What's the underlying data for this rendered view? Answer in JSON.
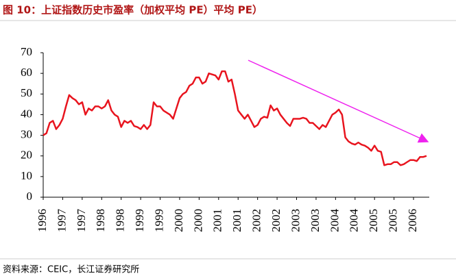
{
  "chart_data": {
    "type": "line",
    "title": "图 10：上证指数历史市盈率（加权平均 PE）平均 PE）",
    "source": "资料来源：CEIC，长江证券研究所",
    "categories": [
      "1996",
      null,
      null,
      null,
      null,
      null,
      "1997",
      null,
      null,
      null,
      null,
      null,
      "1997",
      null,
      null,
      null,
      null,
      null,
      "1998",
      null,
      null,
      null,
      null,
      null,
      "1998",
      null,
      null,
      null,
      null,
      null,
      "1999",
      null,
      null,
      null,
      null,
      null,
      "1999",
      null,
      null,
      null,
      null,
      null,
      "2000",
      null,
      null,
      null,
      null,
      null,
      "2000",
      null,
      null,
      null,
      null,
      null,
      "2001",
      null,
      null,
      null,
      null,
      null,
      "2001",
      null,
      null,
      null,
      null,
      null,
      "2002",
      null,
      null,
      null,
      null,
      null,
      "2002",
      null,
      null,
      null,
      null,
      null,
      "2003",
      null,
      null,
      null,
      null,
      null,
      "2003",
      null,
      null,
      null,
      null,
      null,
      "2004",
      null,
      null,
      null,
      null,
      null,
      "2004",
      null,
      null,
      null,
      null,
      null,
      "2005",
      null,
      null,
      null,
      null,
      null,
      "2005",
      null,
      null,
      null,
      null,
      null,
      "2006",
      null,
      null,
      null,
      null
    ],
    "series": [
      {
        "color": "#e8141e",
        "values": [
          30,
          31,
          36,
          37,
          33,
          35,
          38,
          44,
          49.5,
          48,
          47,
          45,
          46,
          40,
          43,
          42,
          44,
          44,
          43,
          44,
          47,
          42,
          40,
          39,
          34,
          37,
          36,
          37,
          34.5,
          34,
          33,
          35,
          33,
          35,
          46,
          44,
          44,
          42,
          41,
          40,
          38,
          43,
          48,
          50,
          51,
          54,
          55,
          58,
          58,
          55,
          56,
          60,
          59.5,
          59,
          57,
          61,
          61,
          56,
          57,
          50,
          42,
          40,
          38,
          40,
          37,
          34,
          35,
          38,
          39,
          38.5,
          44.5,
          42,
          43,
          40,
          38,
          36,
          34.5,
          38,
          38,
          38,
          38.5,
          38,
          36,
          36,
          34.5,
          33,
          35,
          34,
          37,
          40,
          41,
          42.5,
          40,
          29,
          27,
          26,
          25.5,
          26.5,
          25.5,
          25,
          24,
          22.5,
          25,
          22.5,
          22,
          15.5,
          16,
          16,
          17,
          17,
          15.5,
          16,
          17,
          18,
          18,
          17.5,
          19.5,
          19.5,
          20
        ]
      }
    ],
    "ylim": [
      0,
      70
    ],
    "yticks": [
      0,
      10,
      20,
      30,
      40,
      50,
      60,
      70
    ]
  }
}
